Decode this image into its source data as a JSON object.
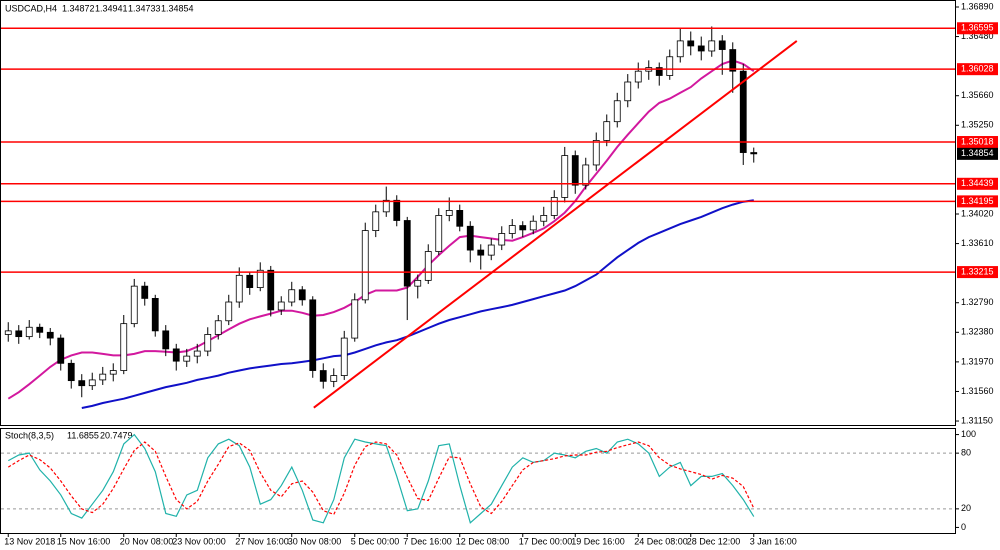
{
  "chart_data": {
    "type": "candlestick",
    "symbol": "USDCAD,H4",
    "categories": [
      "13 Nov 2018",
      null,
      null,
      null,
      null,
      "15 Nov 16:00",
      null,
      null,
      null,
      null,
      null,
      "20 Nov 08:00",
      null,
      null,
      null,
      null,
      "23 Nov 00:00",
      null,
      null,
      null,
      null,
      null,
      "27 Nov 16:00",
      null,
      null,
      null,
      null,
      "30 Nov 08:00",
      null,
      null,
      null,
      null,
      null,
      "5 Dec 00:00",
      null,
      null,
      null,
      null,
      "7 Dec 16:00",
      null,
      null,
      null,
      null,
      "12 Dec 08:00",
      null,
      null,
      null,
      null,
      null,
      "17 Dec 00:00",
      null,
      null,
      null,
      null,
      "19 Dec 16:00",
      null,
      null,
      null,
      null,
      null,
      "24 Dec 08:00",
      null,
      null,
      null,
      null,
      "28 Dec 12:00",
      null,
      null,
      null,
      null,
      null,
      "3 Jan 16:00"
    ],
    "ohlc": [
      [
        1.3235,
        1.3252,
        1.3225,
        1.324
      ],
      [
        1.324,
        1.3248,
        1.3222,
        1.3232
      ],
      [
        1.3232,
        1.3255,
        1.3228,
        1.3245
      ],
      [
        1.3245,
        1.325,
        1.323,
        1.3238
      ],
      [
        1.3238,
        1.3244,
        1.322,
        1.323
      ],
      [
        1.323,
        1.3235,
        1.3185,
        1.3195
      ],
      [
        1.3195,
        1.32,
        1.316,
        1.3171
      ],
      [
        1.3171,
        1.318,
        1.3148,
        1.3164
      ],
      [
        1.3164,
        1.3182,
        1.3158,
        1.3172
      ],
      [
        1.3172,
        1.319,
        1.3165,
        1.318
      ],
      [
        1.318,
        1.3195,
        1.317,
        1.3185
      ],
      [
        1.3185,
        1.3262,
        1.318,
        1.325
      ],
      [
        1.325,
        1.3312,
        1.3245,
        1.3302
      ],
      [
        1.3302,
        1.3308,
        1.3275,
        1.3285
      ],
      [
        1.3285,
        1.329,
        1.3232,
        1.324
      ],
      [
        1.324,
        1.3248,
        1.3205,
        1.3215
      ],
      [
        1.3215,
        1.3222,
        1.3185,
        1.3198
      ],
      [
        1.3198,
        1.3215,
        1.319,
        1.3205
      ],
      [
        1.3205,
        1.3222,
        1.3195,
        1.3212
      ],
      [
        1.3212,
        1.3245,
        1.3205,
        1.3235
      ],
      [
        1.3235,
        1.3262,
        1.3228,
        1.3254
      ],
      [
        1.3254,
        1.329,
        1.3248,
        1.328
      ],
      [
        1.328,
        1.3328,
        1.3272,
        1.3317
      ],
      [
        1.3317,
        1.3322,
        1.329,
        1.33
      ],
      [
        1.33,
        1.3335,
        1.3295,
        1.3324
      ],
      [
        1.3324,
        1.333,
        1.326,
        1.3269
      ],
      [
        1.3269,
        1.3288,
        1.3262,
        1.328
      ],
      [
        1.328,
        1.3308,
        1.3274,
        1.3297
      ],
      [
        1.3297,
        1.3302,
        1.3275,
        1.3283
      ],
      [
        1.3283,
        1.3288,
        1.3175,
        1.3185
      ],
      [
        1.3185,
        1.3195,
        1.316,
        1.317
      ],
      [
        1.317,
        1.3188,
        1.3162,
        1.3178
      ],
      [
        1.3178,
        1.324,
        1.3172,
        1.323
      ],
      [
        1.323,
        1.3292,
        1.3225,
        1.3283
      ],
      [
        1.3283,
        1.339,
        1.3278,
        1.3379
      ],
      [
        1.3379,
        1.3415,
        1.337,
        1.3405
      ],
      [
        1.3405,
        1.344,
        1.3398,
        1.3421
      ],
      [
        1.3421,
        1.3428,
        1.3385,
        1.3393
      ],
      [
        1.3393,
        1.3398,
        1.3255,
        1.3302
      ],
      [
        1.3302,
        1.3318,
        1.3285,
        1.331
      ],
      [
        1.331,
        1.336,
        1.3305,
        1.335
      ],
      [
        1.335,
        1.341,
        1.3345,
        1.34
      ],
      [
        1.34,
        1.3425,
        1.3392,
        1.3407
      ],
      [
        1.3407,
        1.3415,
        1.3378,
        1.3385
      ],
      [
        1.3385,
        1.3392,
        1.3335,
        1.3352
      ],
      [
        1.3352,
        1.336,
        1.3325,
        1.3345
      ],
      [
        1.3345,
        1.3368,
        1.3338,
        1.3359
      ],
      [
        1.3359,
        1.3385,
        1.3352,
        1.3375
      ],
      [
        1.3375,
        1.3395,
        1.3368,
        1.3386
      ],
      [
        1.3386,
        1.3392,
        1.337,
        1.338
      ],
      [
        1.338,
        1.34,
        1.3374,
        1.3392
      ],
      [
        1.3392,
        1.3412,
        1.3385,
        1.34
      ],
      [
        1.34,
        1.3435,
        1.3395,
        1.3425
      ],
      [
        1.3425,
        1.3495,
        1.3418,
        1.3483
      ],
      [
        1.3483,
        1.349,
        1.343,
        1.3442
      ],
      [
        1.3442,
        1.348,
        1.3436,
        1.347
      ],
      [
        1.347,
        1.3515,
        1.3462,
        1.3504
      ],
      [
        1.3504,
        1.354,
        1.3496,
        1.353
      ],
      [
        1.353,
        1.357,
        1.3522,
        1.3559
      ],
      [
        1.3559,
        1.3596,
        1.355,
        1.3585
      ],
      [
        1.3585,
        1.3612,
        1.3576,
        1.36
      ],
      [
        1.36,
        1.3615,
        1.3588,
        1.3605
      ],
      [
        1.3605,
        1.3612,
        1.358,
        1.3594
      ],
      [
        1.3594,
        1.363,
        1.3588,
        1.362
      ],
      [
        1.362,
        1.366,
        1.3612,
        1.3642
      ],
      [
        1.3642,
        1.3655,
        1.3622,
        1.3635
      ],
      [
        1.3635,
        1.3648,
        1.3615,
        1.3628
      ],
      [
        1.3628,
        1.3662,
        1.362,
        1.3642
      ],
      [
        1.3642,
        1.365,
        1.3595,
        1.363
      ],
      [
        1.363,
        1.364,
        1.357,
        1.36
      ],
      [
        1.36,
        1.361,
        1.347,
        1.34872
      ],
      [
        1.34872,
        1.34941,
        1.34733,
        1.34854
      ]
    ],
    "up_color": "#ffffff",
    "down_color": "#000000",
    "ylim": [
      1.31095,
      1.36973
    ],
    "yticks": [
      {
        "value": 1.3689,
        "label": "1.36890"
      },
      {
        "value": 1.3648,
        "label": "1.36480"
      },
      {
        "value": 1.3566,
        "label": "1.35660"
      },
      {
        "value": 1.3525,
        "label": "1.35250"
      },
      {
        "value": 1.3402,
        "label": "1.34020"
      },
      {
        "value": 1.3361,
        "label": "1.33610"
      },
      {
        "value": 1.3279,
        "label": "1.32790"
      },
      {
        "value": 1.3238,
        "label": "1.32380"
      },
      {
        "value": 1.3197,
        "label": "1.31970"
      },
      {
        "value": 1.3156,
        "label": "1.31560"
      },
      {
        "value": 1.3115,
        "label": "1.31150"
      }
    ],
    "moving_averages": [
      {
        "color": "#d2189e",
        "values": [
          1.3146,
          1.3155,
          1.3166,
          1.3178,
          1.319,
          1.32,
          1.3206,
          1.321,
          1.321,
          1.3208,
          1.3206,
          1.3206,
          1.3208,
          1.3212,
          1.3212,
          1.3211,
          1.321,
          1.3212,
          1.3218,
          1.3226,
          1.3234,
          1.3242,
          1.325,
          1.3256,
          1.326,
          1.3264,
          1.3268,
          1.3268,
          1.3265,
          1.3261,
          1.3262,
          1.3266,
          1.3272,
          1.328,
          1.329,
          1.3296,
          1.3296,
          1.3296,
          1.33,
          1.3315,
          1.3331,
          1.3345,
          1.3358,
          1.337,
          1.3372,
          1.337,
          1.3368,
          1.3366,
          1.3365,
          1.337,
          1.3376,
          1.3382,
          1.3392,
          1.3404,
          1.342,
          1.344,
          1.3458,
          1.3476,
          1.3495,
          1.3512,
          1.3528,
          1.3544,
          1.3556,
          1.3562,
          1.357,
          1.3578,
          1.359,
          1.36,
          1.361,
          1.3615,
          1.361,
          1.36
        ]
      },
      {
        "color": "#1010c8",
        "values": [
          null,
          null,
          null,
          null,
          null,
          null,
          null,
          1.3133,
          1.3136,
          1.314,
          1.3143,
          1.3146,
          1.315,
          1.3154,
          1.3158,
          1.3162,
          1.3165,
          1.3168,
          1.3172,
          1.3175,
          1.3178,
          1.3182,
          1.3185,
          1.3188,
          1.319,
          1.3192,
          1.3194,
          1.3195,
          1.3197,
          1.3199,
          1.3202,
          1.3205,
          1.3206,
          1.321,
          1.3215,
          1.322,
          1.3224,
          1.3227,
          1.3232,
          1.3238,
          1.3244,
          1.325,
          1.3255,
          1.3259,
          1.3263,
          1.3267,
          1.327,
          1.3273,
          1.3276,
          1.328,
          1.3284,
          1.3288,
          1.3292,
          1.3296,
          1.3302,
          1.331,
          1.3318,
          1.333,
          1.3342,
          1.3352,
          1.3362,
          1.337,
          1.3376,
          1.3382,
          1.3388,
          1.3393,
          1.3398,
          1.3404,
          1.341,
          1.3415,
          1.3419,
          1.3421
        ]
      }
    ],
    "levels": {
      "color": "#ff0000",
      "values": [
        1.36595,
        1.36028,
        1.35018,
        1.34439,
        1.34195,
        1.33215
      ]
    },
    "trendline": {
      "color": "#ff0000",
      "x": [
        29.1,
        75.1
      ],
      "y": [
        1.31335,
        1.36419
      ]
    },
    "stochastic": {
      "title": "Stoch(8,3,5)",
      "ylim": [
        -6,
        106
      ],
      "yticks": [
        100,
        80,
        20,
        0
      ],
      "levels": [
        80,
        20
      ],
      "main": {
        "color": "#20b2aa",
        "values": [
          72,
          78,
          80,
          62,
          50,
          35,
          15,
          10,
          25,
          40,
          60,
          90,
          100,
          85,
          60,
          15,
          12,
          35,
          40,
          75,
          90,
          95,
          88,
          65,
          25,
          30,
          45,
          65,
          40,
          8,
          5,
          30,
          75,
          95,
          92,
          90,
          88,
          55,
          18,
          20,
          50,
          88,
          90,
          45,
          5,
          15,
          25,
          45,
          65,
          75,
          70,
          72,
          80,
          78,
          75,
          82,
          85,
          80,
          92,
          95,
          90,
          80,
          55,
          65,
          70,
          45,
          55,
          55,
          58,
          45,
          30,
          11.6855
        ]
      },
      "signal": {
        "color": "#ff0000",
        "values": [
          65,
          72,
          78,
          73,
          64,
          50,
          34,
          20,
          16,
          25,
          42,
          63,
          83,
          92,
          82,
          55,
          30,
          20,
          28,
          50,
          68,
          87,
          91,
          83,
          59,
          40,
          33,
          47,
          50,
          38,
          18,
          14,
          37,
          67,
          87,
          92,
          90,
          78,
          54,
          31,
          29,
          53,
          76,
          75,
          47,
          22,
          15,
          28,
          45,
          62,
          70,
          72,
          74,
          77,
          78,
          78,
          81,
          82,
          86,
          89,
          92,
          88,
          75,
          67,
          63,
          60,
          57,
          52,
          56,
          53,
          44,
          20.7479
        ]
      }
    }
  }
}
